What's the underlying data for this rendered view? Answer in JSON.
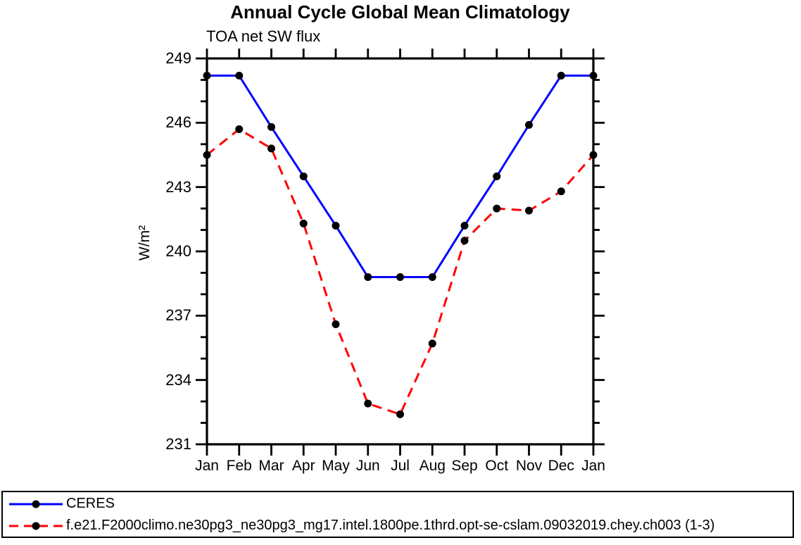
{
  "chart_data": {
    "type": "line",
    "title": "Annual Cycle Global Mean Climatology",
    "subtitle": "TOA net SW flux",
    "ylabel": "W/m²",
    "categories": [
      "Jan",
      "Feb",
      "Mar",
      "Apr",
      "May",
      "Jun",
      "Jul",
      "Aug",
      "Sep",
      "Oct",
      "Nov",
      "Dec",
      "Jan"
    ],
    "ylim": [
      231,
      249
    ],
    "yticks": [
      231,
      234,
      237,
      240,
      243,
      246,
      249
    ],
    "minor_ytick_interval": 1,
    "grid": false,
    "axis_color": "#000000",
    "background_color": "#ffffff",
    "legend_position": "bottom-outside",
    "series": [
      {
        "name": "CERES",
        "color": "#0000ff",
        "line_style": "solid",
        "marker": "filled-circle",
        "marker_color": "#000000",
        "values": [
          248.2,
          248.2,
          245.8,
          243.5,
          241.2,
          238.8,
          238.8,
          238.8,
          241.2,
          243.5,
          245.9,
          248.2,
          248.2
        ]
      },
      {
        "name": "f.e21.F2000climo.ne30pg3_ne30pg3_mg17.intel.1800pe.1thrd.opt-se-cslam.09032019.chey.ch003 (1-3)",
        "color": "#ff0000",
        "line_style": "dashed",
        "marker": "filled-circle",
        "marker_color": "#000000",
        "values": [
          244.5,
          245.7,
          244.8,
          241.3,
          236.6,
          232.9,
          232.4,
          235.7,
          240.5,
          242.0,
          241.9,
          242.8,
          244.5
        ]
      }
    ]
  }
}
